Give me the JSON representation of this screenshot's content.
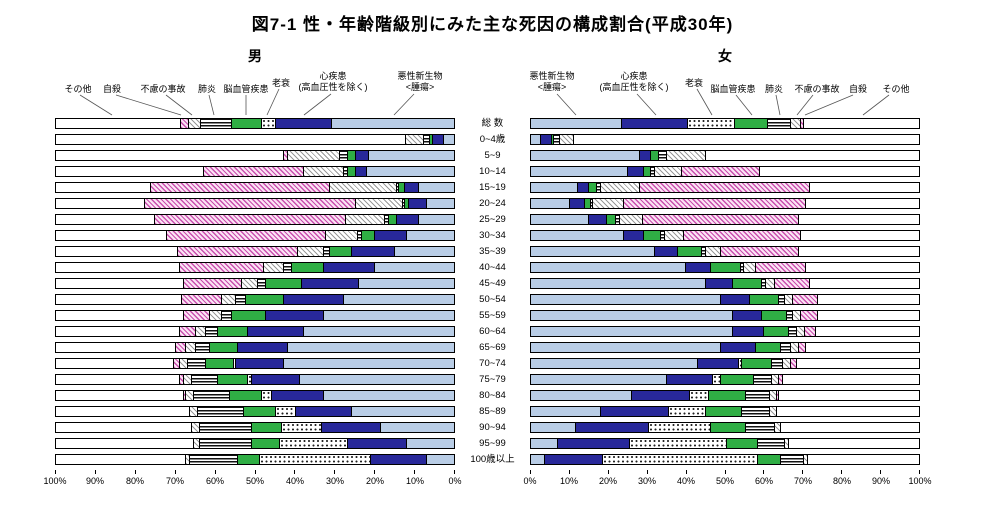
{
  "title": "図7-1 性・年齢階級別にみた主な死因の構成割合(平成30年)",
  "male_header": "男",
  "female_header": "女",
  "legend": {
    "male": [
      {
        "label": "その他"
      },
      {
        "label": "自殺"
      },
      {
        "label": "不慮の事故"
      },
      {
        "label": "肺炎"
      },
      {
        "label": "脳血管疾患"
      },
      {
        "label": "老衰"
      },
      {
        "label": "心疾患",
        "sub": "(高血圧性を除く)"
      },
      {
        "label": "悪性新生物",
        "sub": "<腫瘍>"
      }
    ],
    "female": [
      {
        "label": "悪性新生物",
        "sub": "<腫瘍>"
      },
      {
        "label": "心疾患",
        "sub": "(高血圧性を除く)"
      },
      {
        "label": "老衰"
      },
      {
        "label": "脳血管疾患"
      },
      {
        "label": "肺炎"
      },
      {
        "label": "不慮の事故"
      },
      {
        "label": "自殺"
      },
      {
        "label": "その他"
      }
    ]
  },
  "chart_data": {
    "type": "bar",
    "subtype": "bidirectional-stacked-horizontal",
    "title": "図7-1 性・年齢階級別にみた主な死因の構成割合(平成30年)",
    "unit": "percent",
    "xlim": [
      0,
      100
    ],
    "grid": false,
    "x_ticks_male": [
      "100%",
      "90%",
      "80%",
      "70%",
      "60%",
      "50%",
      "40%",
      "30%",
      "20%",
      "10%",
      "0%"
    ],
    "x_ticks_female": [
      "0%",
      "10%",
      "20%",
      "30%",
      "40%",
      "50%",
      "60%",
      "70%",
      "80%",
      "90%",
      "100%"
    ],
    "categories": [
      "総 数",
      "0~4歳",
      "5~9",
      "10~14",
      "15~19",
      "20~24",
      "25~29",
      "30~34",
      "35~39",
      "40~44",
      "45~49",
      "50~54",
      "55~59",
      "60~64",
      "65~69",
      "70~74",
      "75~79",
      "80~84",
      "85~89",
      "90~94",
      "95~99",
      "100歳以上"
    ],
    "causes": [
      {
        "key": "malignant",
        "name": "悪性新生物<腫瘍>",
        "color": "#b9cde6",
        "pattern": "solid"
      },
      {
        "key": "heart",
        "name": "心疾患(高血圧性を除く)",
        "color": "#28289a",
        "pattern": "solid"
      },
      {
        "key": "senility",
        "name": "老衰",
        "color": "#ffffff",
        "pattern": "black-dots"
      },
      {
        "key": "cerebro",
        "name": "脳血管疾患",
        "color": "#2fae44",
        "pattern": "solid"
      },
      {
        "key": "pneumonia",
        "name": "肺炎",
        "color": "#111111",
        "pattern": "horizontal-stripes"
      },
      {
        "key": "accident",
        "name": "不慮の事故",
        "color": "#999999",
        "pattern": "diagonal-hatch-gray"
      },
      {
        "key": "suicide",
        "name": "自殺",
        "color": "#c94fae",
        "pattern": "diagonal-hatch-pink"
      },
      {
        "key": "other",
        "name": "その他",
        "color": "#ffffff",
        "pattern": "none"
      }
    ],
    "series": {
      "male": [
        [
          31.0,
          13.9,
          3.7,
          7.4,
          7.8,
          3.0,
          2.0,
          31.2
        ],
        [
          2.7,
          2.8,
          0,
          0.7,
          1.5,
          4.5,
          0,
          87.8
        ],
        [
          21.5,
          3.5,
          0,
          2.0,
          2.0,
          13.0,
          1.0,
          57.0
        ],
        [
          22.0,
          3.0,
          0,
          2.0,
          1.0,
          10.0,
          25.0,
          37.0
        ],
        [
          9.0,
          3.5,
          0,
          1.5,
          0.5,
          17.0,
          45.0,
          23.5
        ],
        [
          7.0,
          4.5,
          0,
          1.0,
          0.5,
          12.0,
          53.0,
          22.0
        ],
        [
          9.0,
          5.5,
          0,
          2.0,
          1.0,
          10.0,
          48.0,
          24.5
        ],
        [
          12.0,
          8.0,
          0,
          3.5,
          1.0,
          8.0,
          40.0,
          27.5
        ],
        [
          15.0,
          11.0,
          0,
          5.5,
          1.5,
          6.5,
          30.0,
          30.5
        ],
        [
          20.0,
          13.0,
          0,
          8.0,
          2.0,
          5.0,
          21.0,
          31.0
        ],
        [
          24.0,
          14.5,
          0,
          9.0,
          2.0,
          4.0,
          14.5,
          32.0
        ],
        [
          28.0,
          15.0,
          0,
          9.5,
          2.5,
          3.5,
          10.0,
          31.5
        ],
        [
          33.0,
          14.5,
          0,
          8.5,
          2.5,
          3.0,
          6.5,
          32.0
        ],
        [
          38.0,
          14.0,
          0,
          7.5,
          3.0,
          2.5,
          4.0,
          31.0
        ],
        [
          42.0,
          12.5,
          0,
          7.0,
          3.5,
          2.5,
          2.5,
          30.0
        ],
        [
          43.0,
          12.0,
          0.5,
          7.0,
          4.5,
          2.0,
          1.5,
          29.5
        ],
        [
          39.0,
          12.0,
          1.0,
          7.5,
          6.5,
          2.0,
          1.0,
          31.0
        ],
        [
          33.0,
          13.0,
          2.5,
          8.0,
          9.0,
          2.0,
          0.5,
          32.0
        ],
        [
          26.0,
          14.0,
          5.0,
          8.0,
          11.5,
          2.0,
          0,
          33.5
        ],
        [
          18.5,
          15.0,
          10.0,
          7.5,
          13.0,
          2.0,
          0,
          34.0
        ],
        [
          12.0,
          15.0,
          17.0,
          7.0,
          13.0,
          1.5,
          0,
          34.5
        ],
        [
          7.0,
          14.0,
          28.0,
          5.5,
          12.0,
          1.0,
          0,
          32.5
        ]
      ],
      "female": [
        [
          23.5,
          17.0,
          12.0,
          8.5,
          6.0,
          2.5,
          1.0,
          29.5
        ],
        [
          2.5,
          3.0,
          0,
          0.5,
          1.5,
          3.5,
          0,
          89.0
        ],
        [
          28.0,
          3.0,
          0,
          2.0,
          2.0,
          10.0,
          0,
          55.0
        ],
        [
          25.0,
          4.0,
          0,
          2.0,
          1.0,
          7.0,
          20.0,
          41.0
        ],
        [
          12.0,
          3.0,
          0,
          2.0,
          1.0,
          10.0,
          44.0,
          28.0
        ],
        [
          10.0,
          4.0,
          0,
          1.5,
          0.5,
          8.0,
          47.0,
          29.0
        ],
        [
          15.0,
          4.5,
          0,
          2.5,
          1.0,
          6.0,
          40.0,
          31.0
        ],
        [
          24.0,
          5.0,
          0,
          4.5,
          1.0,
          5.0,
          30.0,
          30.5
        ],
        [
          32.0,
          6.0,
          0,
          6.0,
          1.0,
          4.0,
          20.0,
          31.0
        ],
        [
          40.0,
          6.5,
          0,
          7.5,
          1.0,
          3.0,
          13.0,
          29.0
        ],
        [
          45.0,
          7.0,
          0,
          7.5,
          1.0,
          2.5,
          9.0,
          28.0
        ],
        [
          49.0,
          7.5,
          0,
          7.5,
          1.5,
          2.0,
          6.5,
          26.0
        ],
        [
          52.0,
          7.5,
          0,
          6.5,
          1.5,
          2.0,
          4.5,
          26.0
        ],
        [
          52.0,
          8.0,
          0,
          6.5,
          2.0,
          2.0,
          3.0,
          26.5
        ],
        [
          49.0,
          9.0,
          0,
          6.5,
          2.5,
          2.0,
          2.0,
          29.0
        ],
        [
          43.0,
          10.5,
          1.0,
          7.5,
          3.0,
          2.0,
          1.5,
          31.5
        ],
        [
          35.0,
          12.0,
          2.0,
          8.5,
          4.5,
          2.0,
          1.0,
          35.0
        ],
        [
          26.0,
          15.0,
          5.0,
          9.5,
          6.0,
          2.0,
          0.5,
          36.0
        ],
        [
          18.0,
          17.5,
          9.5,
          9.5,
          7.0,
          2.0,
          0,
          36.5
        ],
        [
          11.5,
          19.0,
          16.0,
          9.0,
          7.5,
          1.5,
          0,
          35.5
        ],
        [
          7.0,
          18.5,
          25.0,
          8.0,
          7.0,
          1.0,
          0,
          33.5
        ],
        [
          3.5,
          15.0,
          40.0,
          6.0,
          6.0,
          1.0,
          0,
          28.5
        ]
      ]
    }
  }
}
